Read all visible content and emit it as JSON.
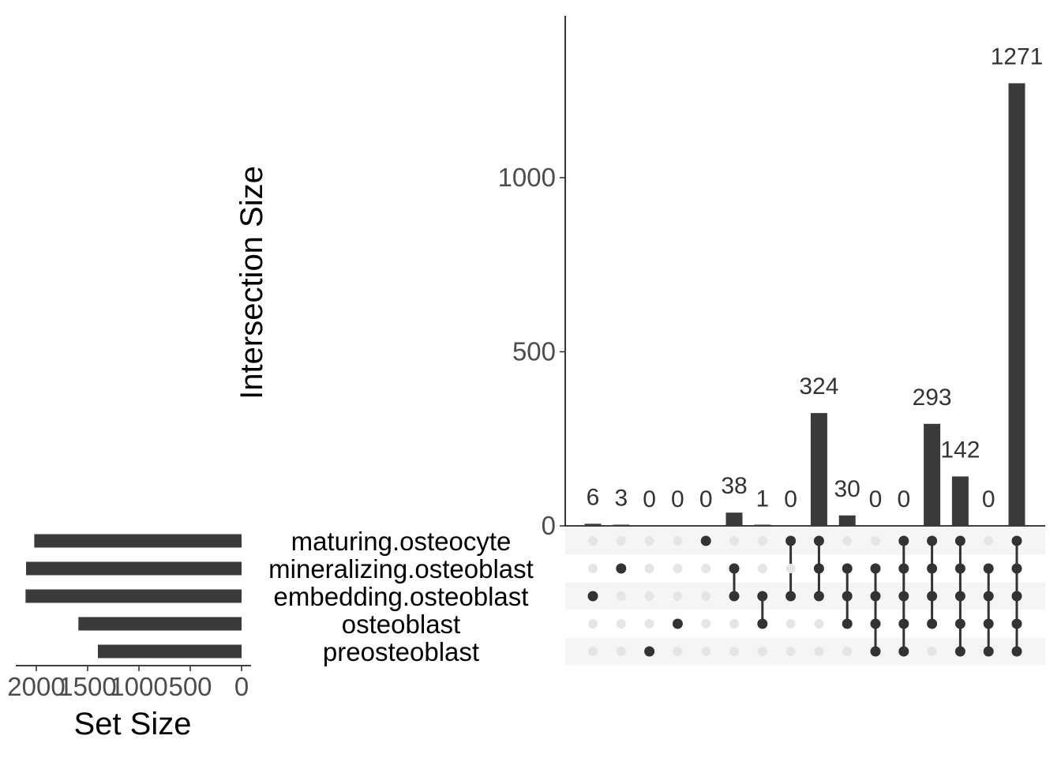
{
  "chart_data": {
    "type": "bar",
    "subtype": "upset",
    "sets": [
      {
        "name": "maturing.osteocyte",
        "size": 2020
      },
      {
        "name": "mineralizing.osteoblast",
        "size": 2100
      },
      {
        "name": "embedding.osteoblast",
        "size": 2105
      },
      {
        "name": "osteoblast",
        "size": 1590
      },
      {
        "name": "preosteoblast",
        "size": 1400
      }
    ],
    "intersections": [
      {
        "members": [
          2
        ],
        "value": 6
      },
      {
        "members": [
          1
        ],
        "value": 3
      },
      {
        "members": [
          4
        ],
        "value": 0
      },
      {
        "members": [
          3
        ],
        "value": 0
      },
      {
        "members": [
          0
        ],
        "value": 0
      },
      {
        "members": [
          1,
          2
        ],
        "value": 38
      },
      {
        "members": [
          2,
          3
        ],
        "value": 1
      },
      {
        "members": [
          0,
          2
        ],
        "value": 0
      },
      {
        "members": [
          0,
          1,
          2
        ],
        "value": 324
      },
      {
        "members": [
          1,
          2,
          3
        ],
        "value": 30
      },
      {
        "members": [
          1,
          2,
          3,
          4
        ],
        "value": 0
      },
      {
        "members": [
          0,
          1,
          2,
          3,
          4
        ],
        "value": 0
      },
      {
        "members": [
          0,
          1,
          2,
          3
        ],
        "value": 293
      },
      {
        "members": [
          0,
          1,
          2,
          3,
          4
        ],
        "value": 142
      },
      {
        "members": [
          1,
          2,
          3,
          4
        ],
        "value": 0
      },
      {
        "members": [
          0,
          1,
          2,
          3,
          4
        ],
        "value": 1271
      }
    ],
    "ylabel": "Intersection Size",
    "ylim": [
      0,
      1450
    ],
    "yticks": [
      0,
      500,
      1000
    ],
    "set_size_label": "Set Size",
    "set_size_xlim": [
      2150,
      0
    ],
    "set_size_ticks": [
      2000,
      1500,
      1000,
      500,
      0
    ],
    "colors": {
      "bar": "#3a3a3a",
      "dot_active": "#333333",
      "dot_inactive": "#e5e5e5",
      "stripe": "#f5f5f5"
    }
  }
}
